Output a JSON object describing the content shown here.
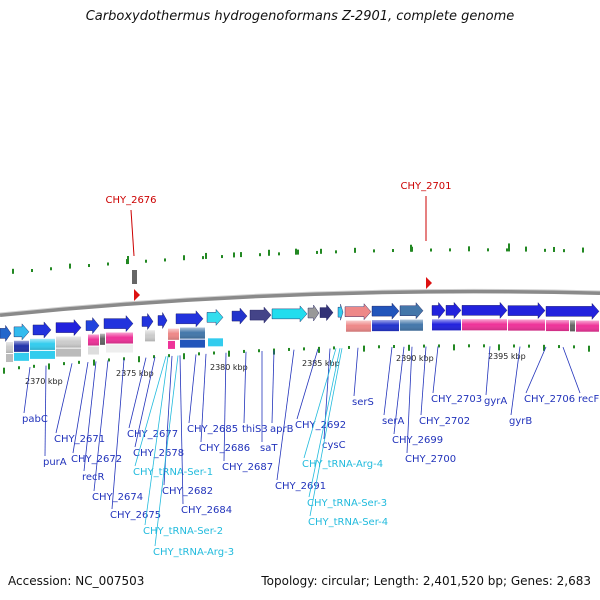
{
  "title": "Carboxydothermus hydrogenoformans Z-2901, complete genome",
  "footer": {
    "accession": "Accession: NC_007503",
    "summary": "Topology: circular; Length: 2,401,520 bp; Genes: 2,683"
  },
  "colors": {
    "forward_gene": "#2222dd",
    "reverse_gene": "#3344cc",
    "rna_gene": "#33ccee",
    "label_gene": "#2233bb",
    "label_rna": "#22bbdd",
    "label_highlight": "#cc0000",
    "backbone": "#888888",
    "tick_green": "#228822",
    "magenta": "#ee3399"
  },
  "scale_labels": [
    "2370 kbp",
    "2375 kbp",
    "2380 kbp",
    "2385 kbp",
    "2390 kbp",
    "2395 kbp"
  ],
  "highlight_labels": [
    "CHY_2676",
    "CHY_2701"
  ],
  "gene_labels": [
    {
      "text": "pabC",
      "kind": "gene"
    },
    {
      "text": "purA",
      "kind": "gene"
    },
    {
      "text": "CHY_2671",
      "kind": "gene"
    },
    {
      "text": "CHY_2672",
      "kind": "gene"
    },
    {
      "text": "recR",
      "kind": "gene"
    },
    {
      "text": "CHY_2674",
      "kind": "gene"
    },
    {
      "text": "CHY_2675",
      "kind": "gene"
    },
    {
      "text": "CHY_2677",
      "kind": "gene"
    },
    {
      "text": "CHY_2678",
      "kind": "gene"
    },
    {
      "text": "CHY_tRNA-Ser-1",
      "kind": "rna"
    },
    {
      "text": "CHY_2682",
      "kind": "gene"
    },
    {
      "text": "CHY_2684",
      "kind": "gene"
    },
    {
      "text": "CHY_tRNA-Ser-2",
      "kind": "rna"
    },
    {
      "text": "CHY_tRNA-Arg-3",
      "kind": "rna"
    },
    {
      "text": "CHY_2685",
      "kind": "gene"
    },
    {
      "text": "CHY_2686",
      "kind": "gene"
    },
    {
      "text": "CHY_2687",
      "kind": "gene"
    },
    {
      "text": "thiS3",
      "kind": "gene"
    },
    {
      "text": "saT",
      "kind": "gene"
    },
    {
      "text": "aprB",
      "kind": "gene"
    },
    {
      "text": "CHY_2691",
      "kind": "gene"
    },
    {
      "text": "CHY_2692",
      "kind": "gene"
    },
    {
      "text": "cysC",
      "kind": "gene"
    },
    {
      "text": "CHY_tRNA-Arg-4",
      "kind": "rna"
    },
    {
      "text": "CHY_tRNA-Ser-3",
      "kind": "rna"
    },
    {
      "text": "CHY_tRNA-Ser-4",
      "kind": "rna"
    },
    {
      "text": "serS",
      "kind": "gene"
    },
    {
      "text": "serA",
      "kind": "gene"
    },
    {
      "text": "CHY_2699",
      "kind": "gene"
    },
    {
      "text": "CHY_2700",
      "kind": "gene"
    },
    {
      "text": "CHY_2702",
      "kind": "gene"
    },
    {
      "text": "CHY_2703",
      "kind": "gene"
    },
    {
      "text": "gyrA",
      "kind": "gene"
    },
    {
      "text": "gyrB",
      "kind": "gene"
    },
    {
      "text": "CHY_2706",
      "kind": "gene"
    },
    {
      "text": "recF",
      "kind": "gene"
    }
  ]
}
